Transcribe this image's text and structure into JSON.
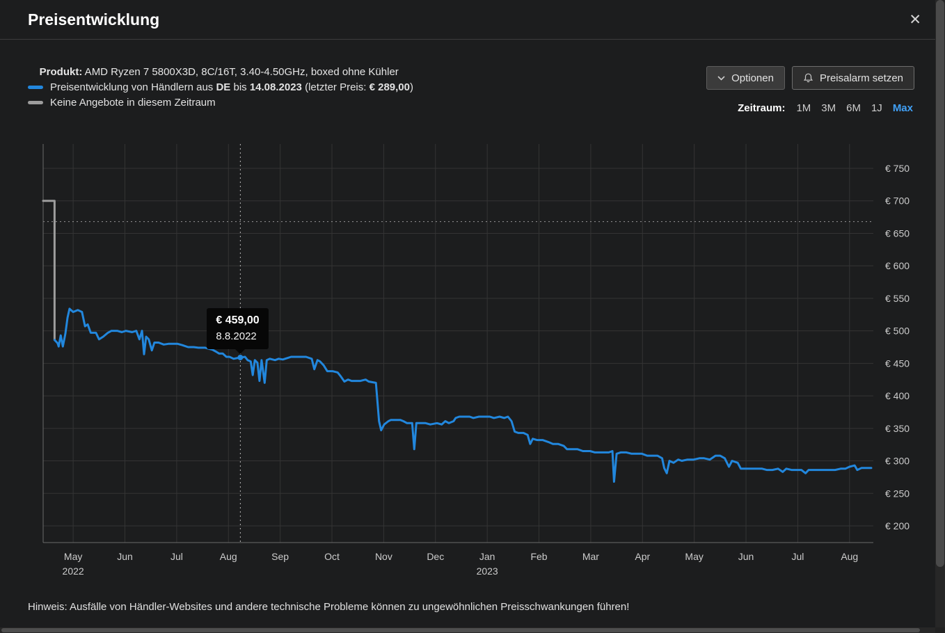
{
  "header": {
    "title": "Preisentwicklung",
    "close_glyph": "✕"
  },
  "product": {
    "label": "Produkt:",
    "value": " AMD Ryzen 7 5800X3D, 8C/16T, 3.40-4.50GHz, boxed ohne Kühler"
  },
  "legend": {
    "price_series": {
      "part1": "Preisentwicklung von Händlern aus ",
      "country": "DE",
      "part2": " bis ",
      "date": "14.08.2023",
      "part3": " (letzter Preis: ",
      "price": "€ 289,00",
      "part4": ")"
    },
    "no_offers": "Keine Angebote in diesem Zeitraum"
  },
  "toolbar": {
    "options_label": "Optionen",
    "alarm_label": "Preisalarm setzen"
  },
  "timerange": {
    "label": "Zeitraum:",
    "options": [
      "1M",
      "3M",
      "6M",
      "1J",
      "Max"
    ],
    "active": "Max"
  },
  "tooltip": {
    "price": "€ 459,00",
    "date": "8.8.2022"
  },
  "note": "Hinweis: Ausfälle von Händler-Websites und andere technische Probleme können zu ungewöhnlichen Preisschwankungen führen!",
  "chart_data": {
    "type": "line",
    "title": "Preisentwicklung AMD Ryzen 7 5800X3D",
    "x_unit": "months_since_2022-05-01",
    "x_domain": [
      -0.58,
      15.46
    ],
    "ylim": [
      174,
      787
    ],
    "y_ticks": [
      200,
      250,
      300,
      350,
      400,
      450,
      500,
      550,
      600,
      650,
      700,
      750
    ],
    "y_tick_prefix": "€ ",
    "x_ticks": [
      {
        "m": 0,
        "label": "May",
        "sub": "2022"
      },
      {
        "m": 1,
        "label": "Jun"
      },
      {
        "m": 2,
        "label": "Jul"
      },
      {
        "m": 3,
        "label": "Aug"
      },
      {
        "m": 4,
        "label": "Sep"
      },
      {
        "m": 5,
        "label": "Oct"
      },
      {
        "m": 6,
        "label": "Nov"
      },
      {
        "m": 7,
        "label": "Dec"
      },
      {
        "m": 8,
        "label": "Jan",
        "sub": "2023"
      },
      {
        "m": 9,
        "label": "Feb"
      },
      {
        "m": 10,
        "label": "Mar"
      },
      {
        "m": 11,
        "label": "Apr"
      },
      {
        "m": 12,
        "label": "May"
      },
      {
        "m": 13,
        "label": "Jun"
      },
      {
        "m": 14,
        "label": "Jul"
      },
      {
        "m": 15,
        "label": "Aug"
      }
    ],
    "grid": true,
    "legend_position": "top-left",
    "colors": {
      "grid": "#343434",
      "axis": "#6a6a6a",
      "tick_label": "#cccccc",
      "crosshair": "#9a9a9a"
    },
    "marker": {
      "x": 3.23,
      "price": 459
    },
    "crosshair": {
      "x": 3.23,
      "price": 668
    },
    "series": [
      {
        "name": "Keine Angebote in diesem Zeitraum",
        "color": "#9d9d9d",
        "points": [
          [
            -0.58,
            700
          ],
          [
            -0.36,
            700
          ],
          [
            -0.36,
            486
          ]
        ]
      },
      {
        "name": "Preisentwicklung von Händlern aus DE",
        "color": "#2287dd",
        "points": [
          [
            -0.36,
            486
          ],
          [
            -0.3,
            481
          ],
          [
            -0.28,
            476
          ],
          [
            -0.24,
            493
          ],
          [
            -0.2,
            476
          ],
          [
            -0.15,
            496
          ],
          [
            -0.11,
            520
          ],
          [
            -0.07,
            534
          ],
          [
            0,
            529
          ],
          [
            0.09,
            532
          ],
          [
            0.17,
            529
          ],
          [
            0.23,
            507
          ],
          [
            0.28,
            510
          ],
          [
            0.34,
            497
          ],
          [
            0.44,
            497
          ],
          [
            0.5,
            487
          ],
          [
            0.58,
            491
          ],
          [
            0.67,
            497
          ],
          [
            0.74,
            500
          ],
          [
            0.85,
            500
          ],
          [
            0.94,
            498
          ],
          [
            1.02,
            500
          ],
          [
            1.14,
            498
          ],
          [
            1.22,
            500
          ],
          [
            1.28,
            487
          ],
          [
            1.33,
            500
          ],
          [
            1.37,
            464
          ],
          [
            1.41,
            491
          ],
          [
            1.46,
            487
          ],
          [
            1.52,
            470
          ],
          [
            1.57,
            482
          ],
          [
            1.65,
            482
          ],
          [
            1.75,
            479
          ],
          [
            1.84,
            480
          ],
          [
            1.95,
            480
          ],
          [
            2.02,
            480
          ],
          [
            2.11,
            478
          ],
          [
            2.22,
            475
          ],
          [
            2.33,
            475
          ],
          [
            2.42,
            474
          ],
          [
            2.55,
            474
          ],
          [
            2.69,
            471
          ],
          [
            2.76,
            468
          ],
          [
            2.82,
            465
          ],
          [
            2.89,
            465
          ],
          [
            2.96,
            460
          ],
          [
            3.02,
            460
          ],
          [
            3.1,
            457
          ],
          [
            3.16,
            458
          ],
          [
            3.23,
            459
          ],
          [
            3.32,
            460
          ],
          [
            3.37,
            455
          ],
          [
            3.43,
            453
          ],
          [
            3.47,
            432
          ],
          [
            3.51,
            455
          ],
          [
            3.56,
            451
          ],
          [
            3.6,
            423
          ],
          [
            3.64,
            455
          ],
          [
            3.7,
            420
          ],
          [
            3.74,
            455
          ],
          [
            3.8,
            457
          ],
          [
            3.9,
            455
          ],
          [
            3.97,
            457
          ],
          [
            4.05,
            456
          ],
          [
            4.13,
            458
          ],
          [
            4.21,
            460
          ],
          [
            4.4,
            460
          ],
          [
            4.5,
            460
          ],
          [
            4.61,
            457
          ],
          [
            4.66,
            441
          ],
          [
            4.72,
            455
          ],
          [
            4.77,
            453
          ],
          [
            4.84,
            447
          ],
          [
            4.91,
            438
          ],
          [
            5.01,
            438
          ],
          [
            5.11,
            436
          ],
          [
            5.17,
            430
          ],
          [
            5.24,
            422
          ],
          [
            5.31,
            425
          ],
          [
            5.38,
            423
          ],
          [
            5.55,
            423
          ],
          [
            5.65,
            425
          ],
          [
            5.71,
            422
          ],
          [
            5.85,
            420
          ],
          [
            5.91,
            361
          ],
          [
            5.95,
            347
          ],
          [
            6.01,
            356
          ],
          [
            6.09,
            361
          ],
          [
            6.14,
            363
          ],
          [
            6.32,
            363
          ],
          [
            6.38,
            361
          ],
          [
            6.45,
            358
          ],
          [
            6.55,
            358
          ],
          [
            6.59,
            318
          ],
          [
            6.63,
            358
          ],
          [
            6.81,
            358
          ],
          [
            6.9,
            356
          ],
          [
            7.03,
            358
          ],
          [
            7.12,
            356
          ],
          [
            7.19,
            361
          ],
          [
            7.26,
            358
          ],
          [
            7.35,
            361
          ],
          [
            7.39,
            366
          ],
          [
            7.46,
            368
          ],
          [
            7.66,
            368
          ],
          [
            7.73,
            366
          ],
          [
            7.84,
            368
          ],
          [
            8.05,
            368
          ],
          [
            8.13,
            366
          ],
          [
            8.24,
            368
          ],
          [
            8.33,
            366
          ],
          [
            8.4,
            368
          ],
          [
            8.47,
            361
          ],
          [
            8.53,
            345
          ],
          [
            8.6,
            343
          ],
          [
            8.7,
            343
          ],
          [
            8.78,
            340
          ],
          [
            8.83,
            326
          ],
          [
            8.88,
            334
          ],
          [
            8.96,
            332
          ],
          [
            9.07,
            332
          ],
          [
            9.18,
            329
          ],
          [
            9.27,
            326
          ],
          [
            9.37,
            326
          ],
          [
            9.48,
            323
          ],
          [
            9.54,
            318
          ],
          [
            9.74,
            318
          ],
          [
            9.85,
            315
          ],
          [
            9.99,
            315
          ],
          [
            10.08,
            313
          ],
          [
            10.26,
            313
          ],
          [
            10.35,
            313
          ],
          [
            10.42,
            315
          ],
          [
            10.45,
            268
          ],
          [
            10.5,
            311
          ],
          [
            10.58,
            313
          ],
          [
            10.69,
            313
          ],
          [
            10.79,
            311
          ],
          [
            10.89,
            311
          ],
          [
            10.99,
            311
          ],
          [
            11.09,
            308
          ],
          [
            11.29,
            308
          ],
          [
            11.38,
            304
          ],
          [
            11.42,
            289
          ],
          [
            11.47,
            281
          ],
          [
            11.52,
            300
          ],
          [
            11.6,
            297
          ],
          [
            11.69,
            302
          ],
          [
            11.76,
            300
          ],
          [
            11.87,
            302
          ],
          [
            11.99,
            302
          ],
          [
            12.1,
            304
          ],
          [
            12.19,
            304
          ],
          [
            12.3,
            302
          ],
          [
            12.41,
            308
          ],
          [
            12.5,
            308
          ],
          [
            12.59,
            304
          ],
          [
            12.67,
            291
          ],
          [
            12.73,
            300
          ],
          [
            12.84,
            297
          ],
          [
            12.9,
            288
          ],
          [
            13.0,
            288
          ],
          [
            13.31,
            288
          ],
          [
            13.4,
            286
          ],
          [
            13.51,
            286
          ],
          [
            13.62,
            288
          ],
          [
            13.71,
            283
          ],
          [
            13.78,
            288
          ],
          [
            13.88,
            286
          ],
          [
            13.99,
            286
          ],
          [
            14.07,
            286
          ],
          [
            14.15,
            281
          ],
          [
            14.21,
            286
          ],
          [
            14.52,
            286
          ],
          [
            14.72,
            286
          ],
          [
            14.83,
            288
          ],
          [
            14.92,
            288
          ],
          [
            15.0,
            291
          ],
          [
            15.1,
            293
          ],
          [
            15.15,
            286
          ],
          [
            15.23,
            289
          ],
          [
            15.3,
            289
          ],
          [
            15.42,
            289
          ]
        ]
      }
    ]
  }
}
